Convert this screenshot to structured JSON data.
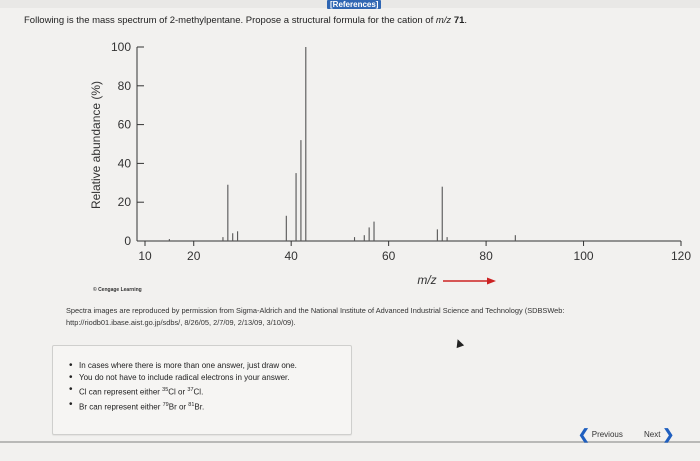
{
  "header": {
    "references_label": "[References]"
  },
  "question": {
    "prefix": "Following is the mass spectrum of 2-methylpentane. Propose a structural formula for the cation of ",
    "mz_label": "m/z",
    "mz_value": "71",
    "suffix": "."
  },
  "chart_data": {
    "type": "bar",
    "ylabel": "Relative abundance (%)",
    "xlabel": "m/z",
    "xlim": [
      0,
      120
    ],
    "ylim": [
      0,
      100
    ],
    "xticks": [
      10,
      20,
      40,
      60,
      80,
      100,
      120
    ],
    "yticks": [
      0,
      20,
      40,
      60,
      80,
      100
    ],
    "peaks": [
      {
        "x": 15,
        "y": 1
      },
      {
        "x": 26,
        "y": 2
      },
      {
        "x": 27,
        "y": 29
      },
      {
        "x": 28,
        "y": 4
      },
      {
        "x": 29,
        "y": 5
      },
      {
        "x": 39,
        "y": 13
      },
      {
        "x": 41,
        "y": 35
      },
      {
        "x": 42,
        "y": 52
      },
      {
        "x": 43,
        "y": 100
      },
      {
        "x": 53,
        "y": 2
      },
      {
        "x": 55,
        "y": 3
      },
      {
        "x": 56,
        "y": 7
      },
      {
        "x": 57,
        "y": 10
      },
      {
        "x": 70,
        "y": 6
      },
      {
        "x": 71,
        "y": 28
      },
      {
        "x": 72,
        "y": 2
      },
      {
        "x": 86,
        "y": 3
      }
    ],
    "arrow_color": "#cc2222",
    "axis_color": "#333333"
  },
  "footer": {
    "cengage": "© Cengage Learning",
    "credit_line1": "Spectra images are reproduced by permission from Sigma-Aldrich and the National Institute of Advanced Industrial Science and Technology (SDBSWeb:",
    "credit_line2": "http://riodb01.ibase.aist.go.jp/sdbs/, 8/26/05, 2/7/09, 2/13/09, 3/10/09)."
  },
  "notes": {
    "item1": "In cases where there is more than one answer, just draw one.",
    "item2": "You do not have to include radical electrons in your answer.",
    "item3_pre": "Cl can represent either ",
    "item3_sup1": "35",
    "item3_mid": "Cl or ",
    "item3_sup2": "37",
    "item3_post": "Cl.",
    "item4_pre": "Br can represent either ",
    "item4_sup1": "79",
    "item4_mid": "Br or ",
    "item4_sup2": "81",
    "item4_post": "Br."
  },
  "nav": {
    "previous": "Previous",
    "next": "Next"
  }
}
